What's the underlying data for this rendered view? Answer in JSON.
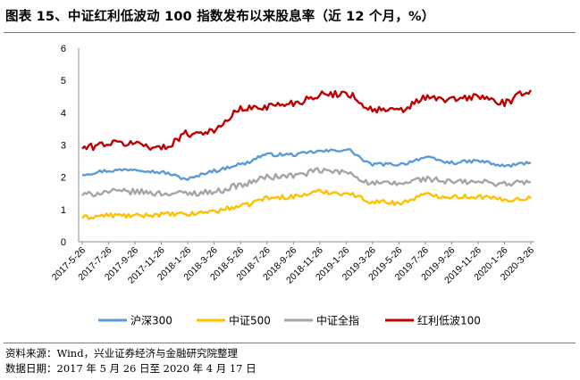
{
  "header": {
    "title": "图表 15、中证红利低波动 100 指数发布以来股息率（近 12 个月，%）"
  },
  "footer": {
    "source": "资料来源：Wind，兴业证券经济与金融研究院整理",
    "date_range": "数据日期：2017 年 5 月 26 日至 2020 年 4 月 17 日"
  },
  "chart_data": {
    "type": "line",
    "title": "",
    "xlabel": "",
    "ylabel": "",
    "ylim": [
      0,
      6
    ],
    "yticks": [
      0,
      1,
      2,
      3,
      4,
      5,
      6
    ],
    "grid": false,
    "legend_position": "bottom",
    "x": [
      "2017-5-26",
      "2017-7-26",
      "2017-9-26",
      "2017-11-26",
      "2018-1-26",
      "2018-3-26",
      "2018-5-26",
      "2018-7-26",
      "2018-9-26",
      "2018-11-26",
      "2019-1-26",
      "2019-3-26",
      "2019-5-26",
      "2019-7-26",
      "2019-9-26",
      "2019-11-26",
      "2020-1-26",
      "2020-3-26"
    ],
    "series": [
      {
        "name": "沪深300",
        "color": "#5b9bd5",
        "values": [
          2.1,
          2.2,
          2.25,
          2.15,
          1.95,
          2.2,
          2.4,
          2.7,
          2.7,
          2.8,
          2.85,
          2.4,
          2.4,
          2.6,
          2.45,
          2.5,
          2.35,
          2.45
        ]
      },
      {
        "name": "中证500",
        "color": "#ffc000",
        "values": [
          0.75,
          0.82,
          0.8,
          0.85,
          0.85,
          0.95,
          1.1,
          1.35,
          1.4,
          1.55,
          1.5,
          1.25,
          1.2,
          1.45,
          1.4,
          1.4,
          1.3,
          1.35
        ]
      },
      {
        "name": "中证全指",
        "color": "#a5a5a5",
        "values": [
          1.45,
          1.55,
          1.55,
          1.5,
          1.5,
          1.55,
          1.75,
          2.0,
          2.05,
          2.2,
          2.15,
          1.8,
          1.8,
          1.95,
          1.85,
          1.85,
          1.8,
          1.85
        ]
      },
      {
        "name": "红利低波100",
        "color": "#c00000",
        "values": [
          2.9,
          3.05,
          3.05,
          2.9,
          3.35,
          3.45,
          4.1,
          4.2,
          4.3,
          4.55,
          4.6,
          4.1,
          4.05,
          4.45,
          4.4,
          4.5,
          4.3,
          4.7
        ]
      }
    ]
  }
}
